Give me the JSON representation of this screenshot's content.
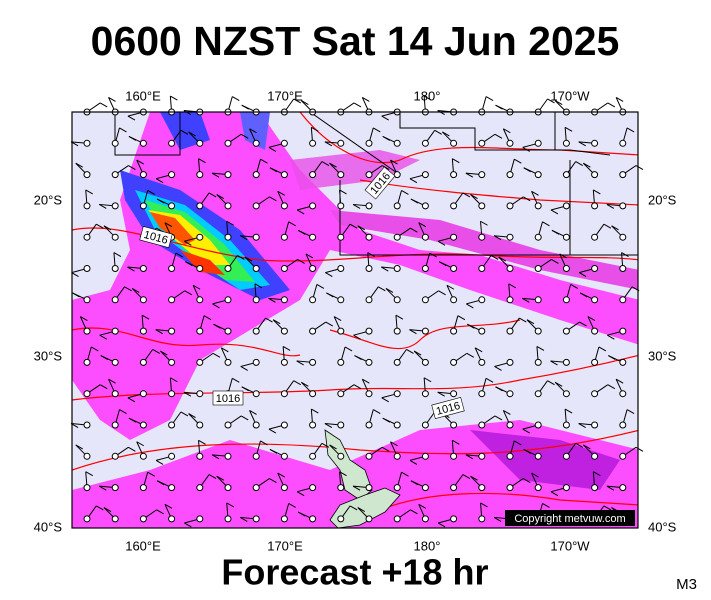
{
  "header": {
    "title": "0600 NZST Sat 14 Jun 2025"
  },
  "map": {
    "lon_labels": [
      "160°E",
      "170°E",
      "180°",
      "170°W"
    ],
    "lat_labels": [
      "20°S",
      "30°S",
      "40°S"
    ],
    "isobar_labels": [
      "1016",
      "1016",
      "1016",
      "1016"
    ],
    "copyright": "Copyright metvuw.com"
  },
  "footer": {
    "forecast": "Forecast +18 hr",
    "model": "M3"
  }
}
